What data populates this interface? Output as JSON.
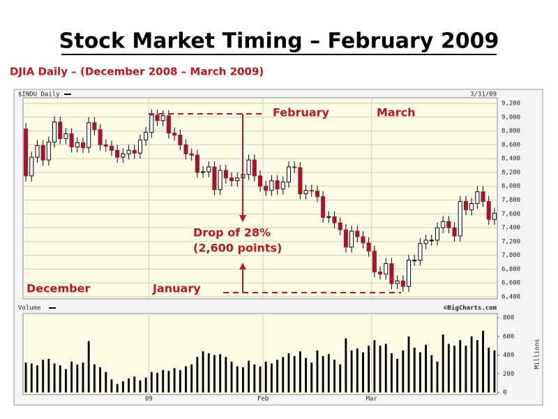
{
  "chart_data": {
    "type": "candlestick",
    "title": "Stock Market Timing – February 2009",
    "subtitle": "DJIA Daily – (December 2008 – March 2009)",
    "symbol_label": "$INDU Daily",
    "date_label": "3/31/09",
    "source": "©BigCharts.com",
    "up_color": "#ffffff",
    "down_color": "#a3162a",
    "grid": true,
    "annotations": [
      "December",
      "January",
      "February",
      "March",
      "Drop of 28%",
      "(2,600 points)"
    ],
    "categories": [
      null,
      null,
      null,
      null,
      null,
      null,
      null,
      null,
      null,
      null,
      null,
      null,
      null,
      null,
      null,
      null,
      null,
      null,
      null,
      null,
      null,
      null,
      "09",
      null,
      null,
      null,
      null,
      null,
      null,
      null,
      null,
      null,
      null,
      null,
      null,
      null,
      null,
      null,
      null,
      null,
      null,
      null,
      "Feb",
      null,
      null,
      null,
      null,
      null,
      null,
      null,
      null,
      null,
      null,
      null,
      null,
      null,
      null,
      null,
      null,
      null,
      null,
      "Mar",
      null,
      null,
      null,
      null,
      null,
      null,
      null,
      null,
      null,
      null,
      null,
      null,
      null,
      null,
      null,
      null,
      null,
      null,
      null,
      null,
      null
    ],
    "open": [
      8830,
      8150,
      8420,
      8590,
      8380,
      8640,
      8930,
      8690,
      8760,
      8570,
      8630,
      8560,
      8920,
      8820,
      8600,
      8580,
      8520,
      8420,
      8470,
      8520,
      8480,
      8670,
      8780,
      9030,
      8950,
      9020,
      8770,
      8740,
      8600,
      8470,
      8450,
      8200,
      8210,
      8280,
      7950,
      8230,
      8120,
      8080,
      8120,
      8170,
      8380,
      8150,
      8000,
      7940,
      8080,
      7960,
      8060,
      8280,
      8270,
      7890,
      7940,
      7930,
      7850,
      7550,
      7560,
      7470,
      7370,
      7120,
      7350,
      7270,
      7180,
      7060,
      6760,
      6730,
      6880,
      6590,
      6630,
      6550,
      6930,
      6930,
      7170,
      7220,
      7220,
      7400,
      7490,
      7400,
      7280,
      7780,
      7660,
      7750,
      7920,
      7780,
      7520
    ],
    "high": [
      8910,
      8500,
      8670,
      8670,
      8720,
      9010,
      9010,
      8840,
      8840,
      8710,
      8710,
      9000,
      9000,
      8900,
      8680,
      8660,
      8600,
      8550,
      8600,
      8600,
      8750,
      8860,
      9110,
      9110,
      9100,
      9100,
      8850,
      8820,
      8680,
      8550,
      8530,
      8290,
      8360,
      8360,
      8310,
      8310,
      8200,
      8200,
      8250,
      8460,
      8460,
      8230,
      8080,
      8160,
      8160,
      8140,
      8360,
      8360,
      8350,
      8020,
      8020,
      8010,
      7930,
      7640,
      7640,
      7550,
      7450,
      7430,
      7430,
      7350,
      7260,
      7140,
      6840,
      6960,
      6960,
      6710,
      6710,
      7010,
      7010,
      7250,
      7300,
      7300,
      7480,
      7570,
      7570,
      7480,
      7860,
      7860,
      7830,
      8000,
      8000,
      7860,
      7690
    ],
    "low": [
      8070,
      8070,
      8340,
      8300,
      8300,
      8560,
      8610,
      8610,
      8490,
      8490,
      8480,
      8480,
      8740,
      8520,
      8500,
      8440,
      8340,
      8340,
      8390,
      8400,
      8400,
      8590,
      8700,
      8870,
      8870,
      8690,
      8660,
      8520,
      8390,
      8370,
      8120,
      8120,
      8130,
      7870,
      7870,
      8040,
      8000,
      8000,
      8040,
      8090,
      8070,
      7920,
      7860,
      7860,
      7880,
      7880,
      7980,
      8190,
      7810,
      7810,
      7850,
      7770,
      7470,
      7470,
      7390,
      7290,
      7040,
      7040,
      7190,
      7100,
      6980,
      6680,
      6650,
      6650,
      6510,
      6510,
      6470,
      6470,
      6850,
      6850,
      7090,
      7140,
      7140,
      7320,
      7320,
      7200,
      7200,
      7580,
      7580,
      7670,
      7700,
      7440,
      7440
    ],
    "close": [
      8150,
      8420,
      8590,
      8380,
      8640,
      8930,
      8690,
      8760,
      8570,
      8630,
      8560,
      8920,
      8820,
      8600,
      8580,
      8520,
      8420,
      8470,
      8520,
      8480,
      8670,
      8780,
      9030,
      8950,
      9020,
      8770,
      8740,
      8600,
      8470,
      8450,
      8200,
      8210,
      8280,
      7950,
      8230,
      8120,
      8080,
      8120,
      8170,
      8380,
      8150,
      8000,
      7940,
      8080,
      7960,
      8060,
      8280,
      8270,
      7890,
      7940,
      7930,
      7850,
      7550,
      7560,
      7470,
      7370,
      7120,
      7350,
      7270,
      7180,
      7060,
      6760,
      6730,
      6880,
      6590,
      6630,
      6550,
      6930,
      6930,
      7170,
      7220,
      7220,
      7400,
      7490,
      7400,
      7280,
      7780,
      7660,
      7750,
      7920,
      7780,
      7520,
      7610
    ],
    "ylim": [
      6400,
      9200
    ],
    "yticks": [
      {
        "value": 6400,
        "label": "6,400"
      },
      {
        "value": 6600,
        "label": "6,600"
      },
      {
        "value": 6800,
        "label": "6,800"
      },
      {
        "value": 7000,
        "label": "7,000"
      },
      {
        "value": 7200,
        "label": "7,200"
      },
      {
        "value": 7400,
        "label": "7,400"
      },
      {
        "value": 7600,
        "label": "7,600"
      },
      {
        "value": 7800,
        "label": "7,800"
      },
      {
        "value": 8000,
        "label": "8,000"
      },
      {
        "value": 8200,
        "label": "8,200"
      },
      {
        "value": 8400,
        "label": "8,400"
      },
      {
        "value": 8600,
        "label": "8,600"
      },
      {
        "value": 8800,
        "label": "8,800"
      },
      {
        "value": 9000,
        "label": "9,000"
      },
      {
        "value": 9200,
        "label": "9,200"
      }
    ],
    "volume": {
      "label": "Volume",
      "axis_label": "Millions",
      "color": "#000000",
      "values": [
        320,
        310,
        290,
        350,
        360,
        310,
        290,
        250,
        330,
        300,
        320,
        550,
        300,
        270,
        220,
        140,
        90,
        120,
        150,
        170,
        130,
        160,
        220,
        210,
        240,
        230,
        260,
        240,
        280,
        300,
        380,
        440,
        420,
        400,
        410,
        380,
        330,
        280,
        270,
        340,
        300,
        280,
        330,
        310,
        350,
        380,
        420,
        390,
        440,
        370,
        320,
        450,
        390,
        410,
        350,
        300,
        580,
        450,
        470,
        430,
        500,
        560,
        500,
        520,
        420,
        360,
        450,
        600,
        480,
        430,
        510,
        400,
        330,
        620,
        520,
        500,
        560,
        500,
        600,
        560,
        660,
        480,
        450
      ],
      "ylim": [
        0,
        800
      ],
      "yticks": [
        0,
        200,
        400,
        600,
        800
      ]
    }
  }
}
